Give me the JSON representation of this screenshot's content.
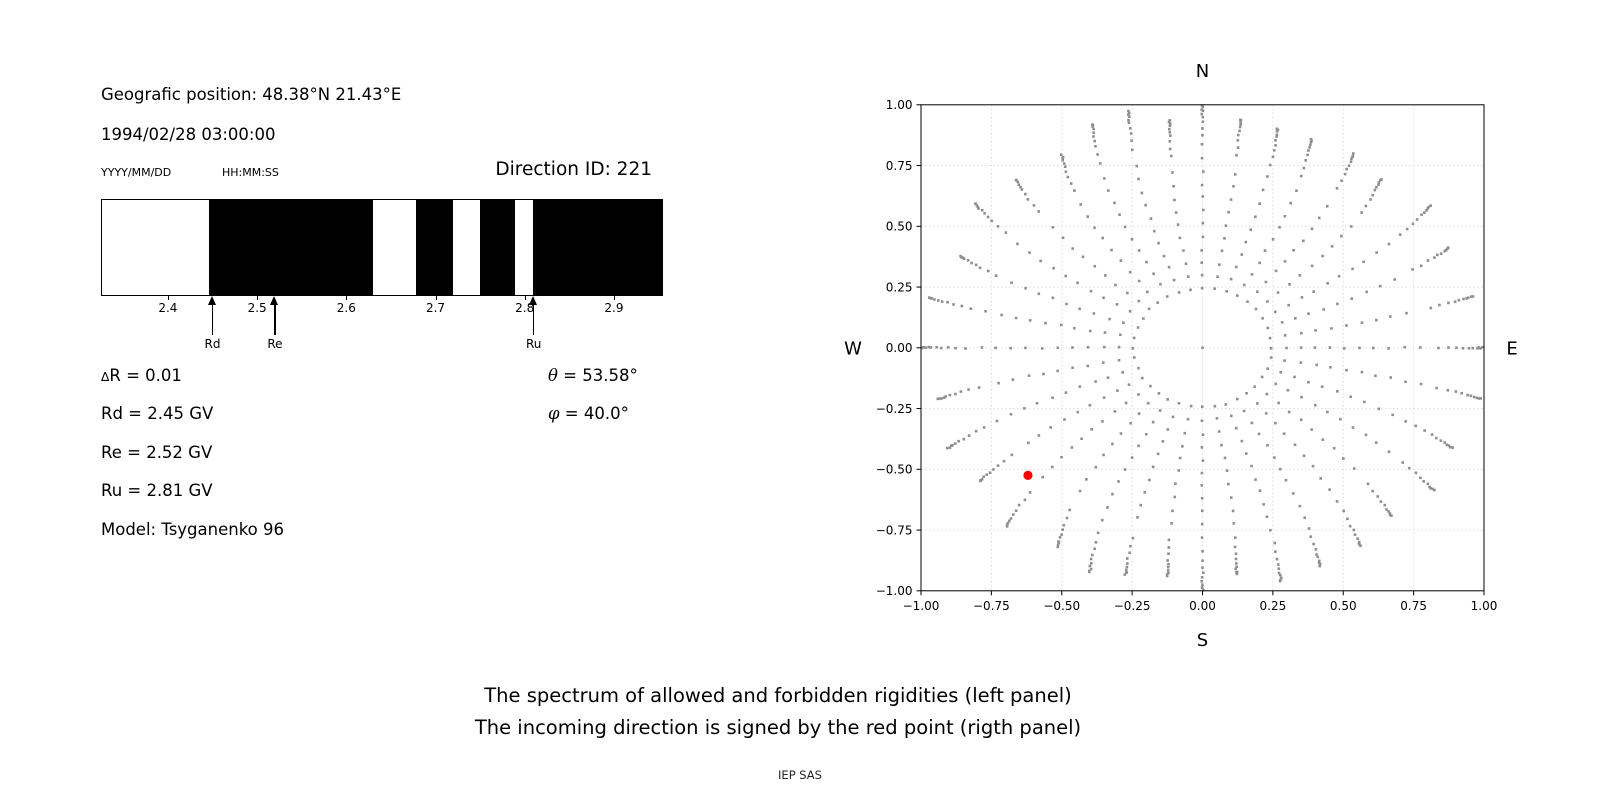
{
  "left_panel": {
    "geo_position": "Geografic position: 48.38°N 21.43°E",
    "datetime": "1994/02/28 03:00:00",
    "date_format": "YYYY/MM/DD",
    "time_format": "HH:MM:SS",
    "direction_id": "Direction ID: 221",
    "delta_r": {
      "symbol": "∆",
      "rest": "R = 0.01"
    },
    "rd": "Rd = 2.45 GV",
    "re": "Re = 2.52 GV",
    "ru": "Ru = 2.81 GV",
    "model": "Model: Tsyganenko 96",
    "theta": {
      "symbol": "θ",
      "rest": " = 53.58°"
    },
    "phi": {
      "symbol": "φ",
      "rest": " = 40.0°"
    }
  },
  "captions": {
    "line1": "The spectrum of allowed and forbidden rigidities (left panel)",
    "line2": "The incoming direction is signed by the red point (rigth panel)",
    "credit": "IEP SAS"
  },
  "chart_data": [
    {
      "type": "bar",
      "name": "rigidity-spectrum",
      "description": "Binary strip of allowed (white) and forbidden (black) rigidities in GV",
      "x_range": [
        2.325,
        2.955
      ],
      "delta_r": 0.01,
      "x_ticks": [
        2.4,
        2.5,
        2.6,
        2.7,
        2.8,
        2.9
      ],
      "x_tick_labels": [
        "2.4",
        "2.5",
        "2.6",
        "2.7",
        "2.8",
        "2.9"
      ],
      "allowed_color": "#ffffff",
      "forbidden_color": "#000000",
      "allowed_segments": [
        [
          2.325,
          2.445
        ],
        [
          2.63,
          2.678
        ],
        [
          2.72,
          2.75
        ],
        [
          2.79,
          2.81
        ]
      ],
      "forbidden_segments": [
        [
          2.445,
          2.63
        ],
        [
          2.678,
          2.72
        ],
        [
          2.75,
          2.79
        ],
        [
          2.81,
          2.955
        ]
      ],
      "markers": [
        {
          "label": "Rd",
          "rigidity": 2.45
        },
        {
          "label": "Re",
          "rigidity": 2.52
        },
        {
          "label": "Ru",
          "rigidity": 2.81
        }
      ]
    },
    {
      "type": "scatter",
      "name": "incoming-direction-plot",
      "description": "Asymptotic viewing-direction sky map: 36 curved spokes of small gray dots radiating from an inner dotted ring; red dot marks the incoming direction",
      "compass": {
        "n": "N",
        "s": "S",
        "e": "E",
        "w": "W"
      },
      "xlim": [
        -1,
        1
      ],
      "ylim": [
        -1,
        1
      ],
      "grid": true,
      "tick_values": [
        -1,
        -0.75,
        -0.5,
        -0.25,
        0,
        0.25,
        0.5,
        0.75,
        1
      ],
      "x_tick_labels": [
        "−1.00",
        "−0.75",
        "−0.50",
        "−0.25",
        "0.00",
        "0.25",
        "0.50",
        "0.75",
        "1.00"
      ],
      "y_tick_labels": [
        "−1.00",
        "−0.75",
        "−0.50",
        "−0.25",
        "0.00",
        "0.25",
        "0.50",
        "0.75",
        "1.00"
      ],
      "dot_color": "#8f8f8f",
      "grid_color": "#d9d9d9",
      "spokes": {
        "count": 36,
        "angle_step_deg": 10,
        "ring_radius": 0.245,
        "radial_step": 0.054,
        "outer_radius": 1.0,
        "tip_clump_radii_frac": [
          0.84,
          0.875,
          0.905,
          0.928,
          0.947,
          0.962,
          0.974,
          0.983,
          0.99,
          0.996
        ],
        "curl_toward_vertical_deg": 7,
        "center_dot": true
      },
      "red_point": {
        "x": -0.62,
        "y": -0.525,
        "color": "#ff0000",
        "radius_px": 4.6
      }
    }
  ]
}
